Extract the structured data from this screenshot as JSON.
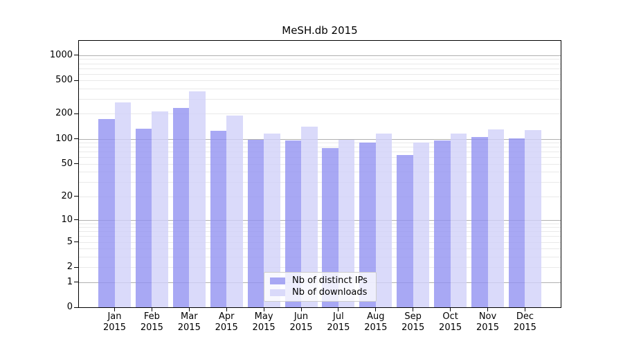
{
  "chart_data": {
    "type": "bar",
    "title": "MeSH.db 2015",
    "y_scale": "log1p",
    "ylim": [
      0,
      1480
    ],
    "grid": "on",
    "legend_position": "lower center",
    "y_ticks": [
      0,
      1,
      2,
      5,
      10,
      20,
      50,
      100,
      200,
      500,
      1000
    ],
    "y_gridlines_major": [
      1,
      10,
      100,
      1000
    ],
    "y_gridlines_minor": [
      2,
      3,
      4,
      5,
      6,
      7,
      8,
      9,
      20,
      30,
      40,
      50,
      60,
      70,
      80,
      90,
      200,
      300,
      400,
      500,
      600,
      700,
      800,
      900
    ],
    "categories": [
      {
        "month": "Jan",
        "year": "2015"
      },
      {
        "month": "Feb",
        "year": "2015"
      },
      {
        "month": "Mar",
        "year": "2015"
      },
      {
        "month": "Apr",
        "year": "2015"
      },
      {
        "month": "May",
        "year": "2015"
      },
      {
        "month": "Jun",
        "year": "2015"
      },
      {
        "month": "Jul",
        "year": "2015"
      },
      {
        "month": "Aug",
        "year": "2015"
      },
      {
        "month": "Sep",
        "year": "2015"
      },
      {
        "month": "Oct",
        "year": "2015"
      },
      {
        "month": "Nov",
        "year": "2015"
      },
      {
        "month": "Dec",
        "year": "2015"
      }
    ],
    "series": [
      {
        "key": "distinct-ips",
        "name": "Nb of distinct IPs",
        "color": "#9292f1",
        "values": [
          173,
          133,
          235,
          125,
          97,
          96,
          78,
          90,
          64,
          96,
          105,
          101
        ]
      },
      {
        "key": "downloads",
        "name": "Nb of downloads",
        "color": "#d1d1f9",
        "values": [
          275,
          212,
          370,
          190,
          115,
          140,
          98,
          116,
          90,
          116,
          130,
          127
        ]
      }
    ],
    "axis_color": "#000000",
    "gridline_major_color": "#b0b0b0",
    "gridline_minor_color": "#e9e9e9"
  }
}
